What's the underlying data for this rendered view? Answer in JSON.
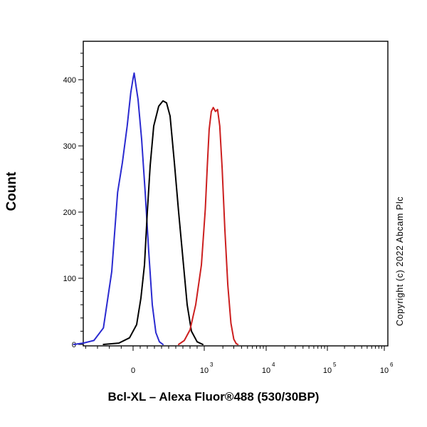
{
  "chart_data": {
    "type": "line",
    "title": "",
    "xlabel": "Bcl-XL – Alexa Fluor®488 (530/30BP)",
    "ylabel": "Count",
    "ylim": [
      0,
      450
    ],
    "yticks": [
      0,
      100,
      200,
      300,
      400
    ],
    "ytick_labels": [
      "0",
      "100",
      "200",
      "300",
      "400"
    ],
    "x_scale": "biexponential (logicle)",
    "xlim_approx": [
      -600,
      1000000
    ],
    "xtick_labels": [
      {
        "base": "0",
        "exp": ""
      },
      {
        "base": "10",
        "exp": "3"
      },
      {
        "base": "10",
        "exp": "4"
      },
      {
        "base": "10",
        "exp": "5"
      },
      {
        "base": "10",
        "exp": "6"
      }
    ],
    "grid": false,
    "legend": "none",
    "annotation": "Copyright (c) 2022 Abcam Plc",
    "series": [
      {
        "color": "#2a2ad0",
        "points": [
          [
            -500,
            0
          ],
          [
            -420,
            2
          ],
          [
            -330,
            6
          ],
          [
            -250,
            25
          ],
          [
            -180,
            110
          ],
          [
            -130,
            230
          ],
          [
            -90,
            275
          ],
          [
            -50,
            330
          ],
          [
            -20,
            380
          ],
          [
            0,
            402
          ],
          [
            15,
            410
          ],
          [
            35,
            395
          ],
          [
            70,
            370
          ],
          [
            120,
            310
          ],
          [
            170,
            230
          ],
          [
            220,
            140
          ],
          [
            270,
            60
          ],
          [
            320,
            18
          ],
          [
            370,
            4
          ],
          [
            420,
            0
          ]
        ]
      },
      {
        "color": "#000000",
        "points": [
          [
            -250,
            0
          ],
          [
            -120,
            2
          ],
          [
            -30,
            10
          ],
          [
            50,
            30
          ],
          [
            110,
            70
          ],
          [
            160,
            120
          ],
          [
            200,
            200
          ],
          [
            240,
            270
          ],
          [
            290,
            330
          ],
          [
            360,
            360
          ],
          [
            420,
            368
          ],
          [
            470,
            365
          ],
          [
            520,
            345
          ],
          [
            580,
            275
          ],
          [
            640,
            200
          ],
          [
            700,
            130
          ],
          [
            760,
            60
          ],
          [
            820,
            20
          ],
          [
            900,
            4
          ],
          [
            980,
            0
          ]
        ]
      },
      {
        "color": "#cc1f1f",
        "points": [
          [
            640,
            0
          ],
          [
            720,
            6
          ],
          [
            800,
            22
          ],
          [
            880,
            60
          ],
          [
            960,
            120
          ],
          [
            1040,
            205
          ],
          [
            1120,
            270
          ],
          [
            1200,
            325
          ],
          [
            1300,
            352
          ],
          [
            1400,
            358
          ],
          [
            1520,
            352
          ],
          [
            1640,
            355
          ],
          [
            1780,
            330
          ],
          [
            1950,
            265
          ],
          [
            2150,
            175
          ],
          [
            2400,
            90
          ],
          [
            2700,
            32
          ],
          [
            3000,
            8
          ],
          [
            3300,
            1
          ],
          [
            3500,
            0
          ]
        ]
      }
    ]
  }
}
